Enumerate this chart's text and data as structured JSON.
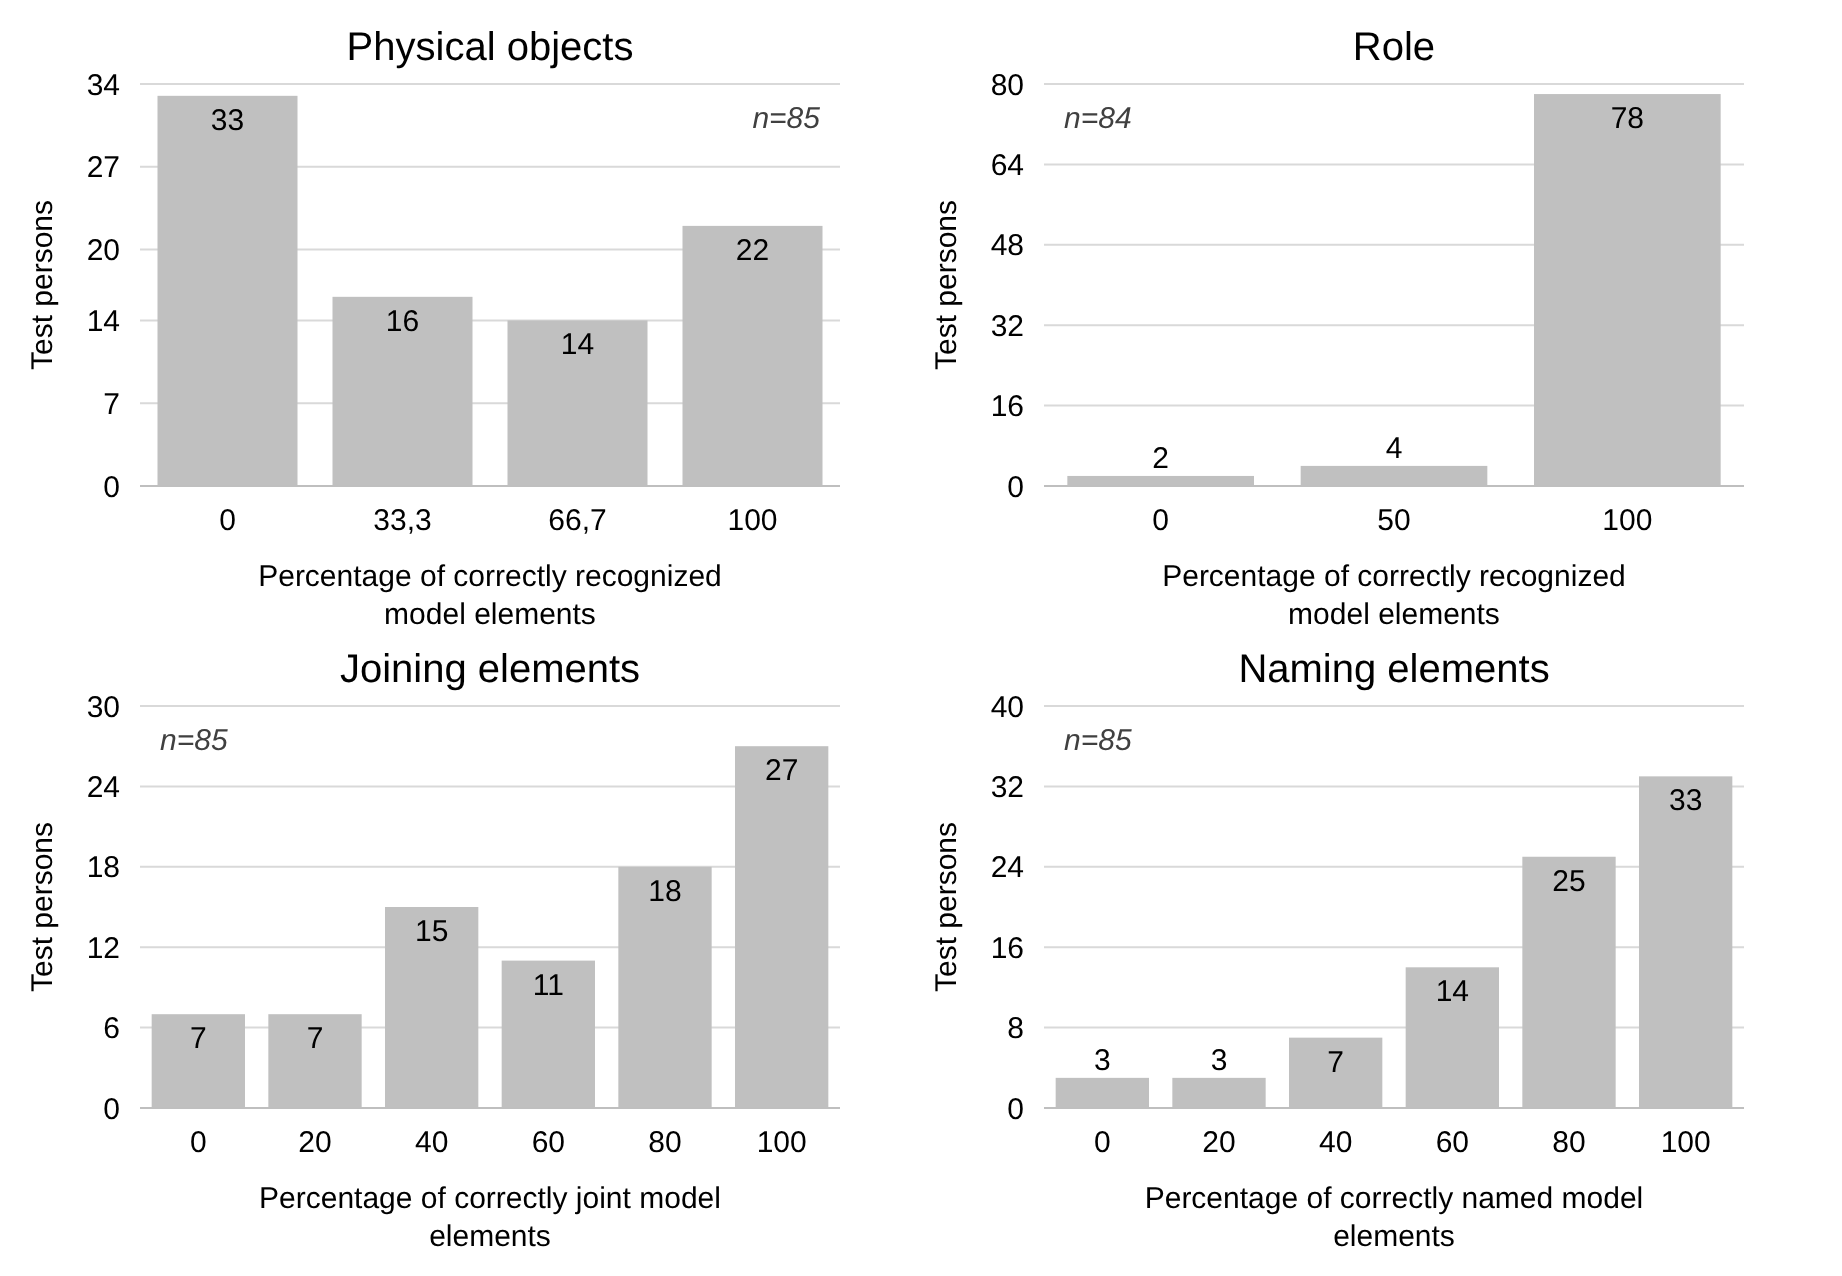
{
  "chart_data": [
    {
      "type": "bar",
      "title": "Physical objects",
      "xlabel": "Percentage of correctly recognized model elements",
      "ylabel": "Test persons",
      "categories": [
        "0",
        "33,3",
        "66,7",
        "100"
      ],
      "values": [
        33,
        16,
        14,
        22
      ],
      "color": "#c0c0c0",
      "ylim": [
        0,
        34
      ],
      "yticks": [
        0,
        7,
        14,
        20,
        27,
        34
      ],
      "grid": "y",
      "data_labels": true,
      "annotations": [
        "n=85"
      ]
    },
    {
      "type": "bar",
      "title": "Role",
      "xlabel": "Percentage of correctly recognized model elements",
      "ylabel": "Test persons",
      "categories": [
        "0",
        "50",
        "100"
      ],
      "values": [
        2,
        4,
        78
      ],
      "color": "#c0c0c0",
      "ylim": [
        0,
        80
      ],
      "yticks": [
        0,
        16,
        32,
        48,
        64,
        80
      ],
      "grid": "y",
      "data_labels": true,
      "annotations": [
        "n=84"
      ]
    },
    {
      "type": "bar",
      "title": "Joining elements",
      "xlabel": "Percentage of correctly joint model elements",
      "ylabel": "Test persons",
      "categories": [
        "0",
        "20",
        "40",
        "60",
        "80",
        "100"
      ],
      "values": [
        7,
        7,
        15,
        11,
        18,
        27
      ],
      "color": "#c0c0c0",
      "ylim": [
        0,
        30
      ],
      "yticks": [
        0,
        6,
        12,
        18,
        24,
        30
      ],
      "grid": "y",
      "data_labels": true,
      "annotations": [
        "n=85"
      ]
    },
    {
      "type": "bar",
      "title": "Naming elements",
      "xlabel": "Percentage of correctly named model elements",
      "ylabel": "Test persons",
      "categories": [
        "0",
        "20",
        "40",
        "60",
        "80",
        "100"
      ],
      "values": [
        3,
        3,
        7,
        14,
        25,
        33
      ],
      "color": "#c0c0c0",
      "ylim": [
        0,
        40
      ],
      "yticks": [
        0,
        8,
        16,
        24,
        32,
        40
      ],
      "grid": "y",
      "data_labels": true,
      "annotations": [
        "n=85"
      ]
    }
  ]
}
